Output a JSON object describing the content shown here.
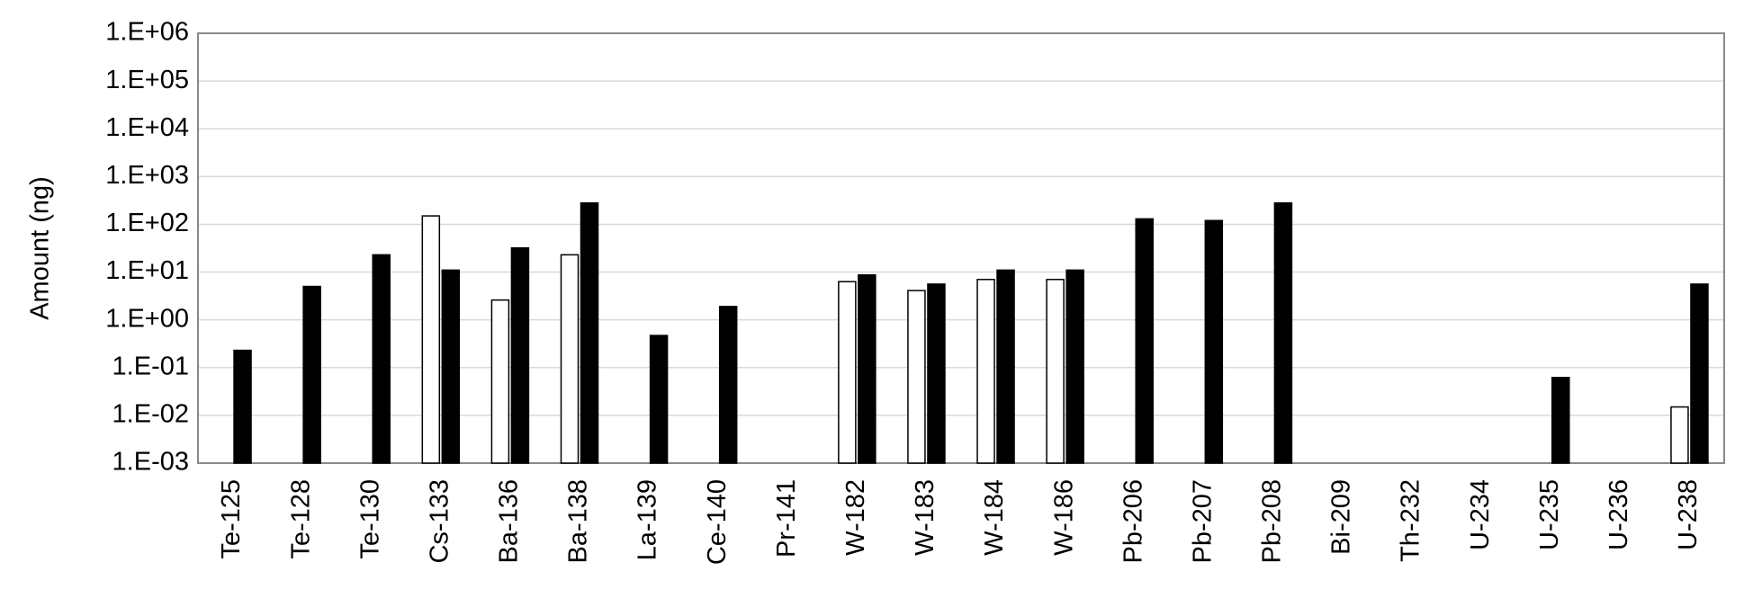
{
  "chart_data": {
    "type": "bar",
    "y_label": "Amount (ng)",
    "log_scale": true,
    "grid": true,
    "categories": [
      "Te-125",
      "Te-128",
      "Te-130",
      "Cs-133",
      "Ba-136",
      "Ba-138",
      "La-139",
      "Ce-140",
      "Pr-141",
      "W-182",
      "W-183",
      "W-184",
      "W-186",
      "Pb-206",
      "Pb-207",
      "Pb-208",
      "Bi-209",
      "Th-232",
      "U-234",
      "U-235",
      "U-236",
      "U-238"
    ],
    "series": [
      {
        "color": "#ffffff",
        "values": [
          null,
          null,
          null,
          150,
          2.6,
          23,
          null,
          null,
          null,
          6.3,
          4.1,
          7,
          7,
          null,
          null,
          null,
          null,
          null,
          null,
          null,
          null,
          0.015
        ]
      },
      {
        "color": "#000000",
        "values": [
          0.23,
          5,
          23,
          11,
          32,
          280,
          0.47,
          1.9,
          null,
          8.7,
          5.6,
          11,
          11,
          130,
          120,
          280,
          null,
          null,
          null,
          0.062,
          null,
          5.6
        ]
      }
    ],
    "ylim": [
      0.001,
      1000000
    ],
    "yticks": [
      {
        "value": 0.001,
        "label": "1.E-03"
      },
      {
        "value": 0.01,
        "label": "1.E-02"
      },
      {
        "value": 0.1,
        "label": "1.E-01"
      },
      {
        "value": 1,
        "label": "1.E+00"
      },
      {
        "value": 10,
        "label": "1.E+01"
      },
      {
        "value": 100,
        "label": "1.E+02"
      },
      {
        "value": 1000,
        "label": "1.E+03"
      },
      {
        "value": 10000,
        "label": "1.E+04"
      },
      {
        "value": 100000,
        "label": "1.E+05"
      },
      {
        "value": 1000000,
        "label": "1.E+06"
      }
    ]
  }
}
